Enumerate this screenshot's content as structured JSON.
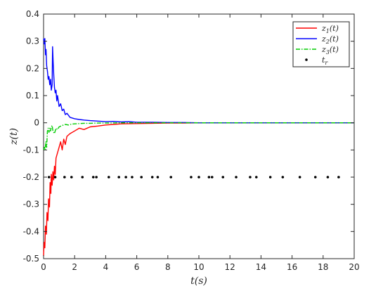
{
  "chart_data": {
    "type": "line",
    "xlabel": "t(s)",
    "ylabel": "z(t)",
    "xlim": [
      0,
      20
    ],
    "ylim": [
      -0.5,
      0.4
    ],
    "xticks": [
      0,
      2,
      4,
      6,
      8,
      10,
      12,
      14,
      16,
      18,
      20
    ],
    "yticks": [
      0.4,
      0.3,
      0.2,
      0.1,
      0,
      -0.1,
      -0.2,
      -0.3,
      -0.4,
      -0.5
    ],
    "xtick_labels": [
      "0",
      "2",
      "4",
      "6",
      "8",
      "10",
      "12",
      "14",
      "16",
      "18",
      "20"
    ],
    "ytick_labels": [
      "0.4",
      "0.3",
      "0.2",
      "0.1",
      "0",
      "-0.1",
      "-0.2",
      "-0.3",
      "-0.4",
      "-0.5"
    ],
    "grid": false,
    "legend_position": "top-right",
    "series": [
      {
        "name": "z1(t)",
        "label_main": "z",
        "label_sub": "1",
        "label_tail": "(t)",
        "color": "#ff0000",
        "style": "solid",
        "x": [
          0,
          0.03,
          0.08,
          0.12,
          0.18,
          0.22,
          0.28,
          0.32,
          0.38,
          0.42,
          0.47,
          0.5,
          0.55,
          0.6,
          0.65,
          0.7,
          0.75,
          0.8,
          0.9,
          1.0,
          1.1,
          1.2,
          1.3,
          1.4,
          1.5,
          1.7,
          2.0,
          2.3,
          2.6,
          3.0,
          3.5,
          4.0,
          4.5,
          5.0,
          6.0,
          7.0,
          8.0,
          9.0,
          10.0,
          12.0,
          14.0,
          16.0,
          18.0,
          20.0
        ],
        "y": [
          -0.49,
          -0.44,
          -0.46,
          -0.38,
          -0.41,
          -0.33,
          -0.36,
          -0.28,
          -0.31,
          -0.22,
          -0.26,
          -0.19,
          -0.23,
          -0.18,
          -0.21,
          -0.16,
          -0.19,
          -0.13,
          -0.11,
          -0.09,
          -0.07,
          -0.1,
          -0.06,
          -0.08,
          -0.05,
          -0.04,
          -0.03,
          -0.02,
          -0.025,
          -0.015,
          -0.012,
          -0.008,
          -0.006,
          -0.004,
          -0.003,
          -0.002,
          -0.001,
          -0.001,
          0,
          0,
          0,
          0,
          0,
          0
        ]
      },
      {
        "name": "z2(t)",
        "label_main": "z",
        "label_sub": "2",
        "label_tail": "(t)",
        "color": "#0000ff",
        "style": "solid",
        "x": [
          0,
          0.04,
          0.08,
          0.12,
          0.16,
          0.2,
          0.25,
          0.3,
          0.35,
          0.4,
          0.45,
          0.5,
          0.55,
          0.58,
          0.62,
          0.66,
          0.7,
          0.75,
          0.8,
          0.85,
          0.9,
          1.0,
          1.1,
          1.2,
          1.3,
          1.4,
          1.5,
          1.7,
          2.0,
          2.3,
          2.6,
          3.0,
          3.5,
          4.0,
          4.5,
          5.0,
          5.5,
          6.0,
          7.0,
          8.0,
          9.0,
          10.0,
          12.0,
          14.0,
          16.0,
          18.0,
          20.0
        ],
        "y": [
          0.31,
          0.29,
          0.31,
          0.25,
          0.27,
          0.21,
          0.19,
          0.16,
          0.17,
          0.14,
          0.16,
          0.12,
          0.14,
          0.28,
          0.22,
          0.17,
          0.13,
          0.11,
          0.12,
          0.08,
          0.1,
          0.06,
          0.07,
          0.045,
          0.05,
          0.03,
          0.035,
          0.02,
          0.015,
          0.012,
          0.01,
          0.008,
          0.006,
          0.004,
          0.005,
          0.003,
          0.004,
          0.002,
          0.002,
          0.001,
          0.001,
          0,
          0,
          0,
          0,
          0,
          0
        ]
      },
      {
        "name": "z3(t)",
        "label_main": "z",
        "label_sub": "3",
        "label_tail": "(t)",
        "color": "#00cc00",
        "style": "dashdot",
        "x": [
          0,
          0.05,
          0.1,
          0.15,
          0.2,
          0.25,
          0.3,
          0.35,
          0.4,
          0.45,
          0.5,
          0.55,
          0.6,
          0.7,
          0.8,
          0.9,
          1.0,
          1.2,
          1.4,
          1.6,
          1.8,
          2.0,
          2.3,
          2.6,
          3.0,
          3.5,
          4.0,
          5.0,
          6.0,
          7.0,
          8.0,
          9.0,
          10.0,
          12.0,
          14.0,
          16.0,
          18.0,
          20.0
        ],
        "y": [
          -0.1,
          -0.09,
          -0.1,
          -0.07,
          -0.09,
          -0.03,
          -0.02,
          -0.035,
          -0.02,
          -0.03,
          -0.015,
          -0.01,
          -0.03,
          -0.04,
          -0.02,
          -0.025,
          -0.015,
          -0.01,
          -0.006,
          -0.008,
          -0.005,
          -0.004,
          -0.003,
          -0.002,
          -0.002,
          -0.001,
          -0.001,
          0,
          0,
          0,
          0,
          0,
          0,
          0,
          0,
          0,
          0,
          0
        ]
      },
      {
        "name": "tr",
        "label_main": "t",
        "label_sub": "r",
        "label_tail": "",
        "color": "#000000",
        "style": "markers",
        "x": [
          0.35,
          0.75,
          1.35,
          1.8,
          2.5,
          3.2,
          3.4,
          4.2,
          4.85,
          5.3,
          5.7,
          6.3,
          7.0,
          7.35,
          8.2,
          9.5,
          10.0,
          10.65,
          10.85,
          11.55,
          12.4,
          13.3,
          13.7,
          14.6,
          15.4,
          16.5,
          17.5,
          18.3,
          19.0
        ],
        "y": [
          -0.2,
          -0.2,
          -0.2,
          -0.2,
          -0.2,
          -0.2,
          -0.2,
          -0.2,
          -0.2,
          -0.2,
          -0.2,
          -0.2,
          -0.2,
          -0.2,
          -0.2,
          -0.2,
          -0.2,
          -0.2,
          -0.2,
          -0.2,
          -0.2,
          -0.2,
          -0.2,
          -0.2,
          -0.2,
          -0.2,
          -0.2,
          -0.2,
          -0.2
        ]
      }
    ]
  }
}
